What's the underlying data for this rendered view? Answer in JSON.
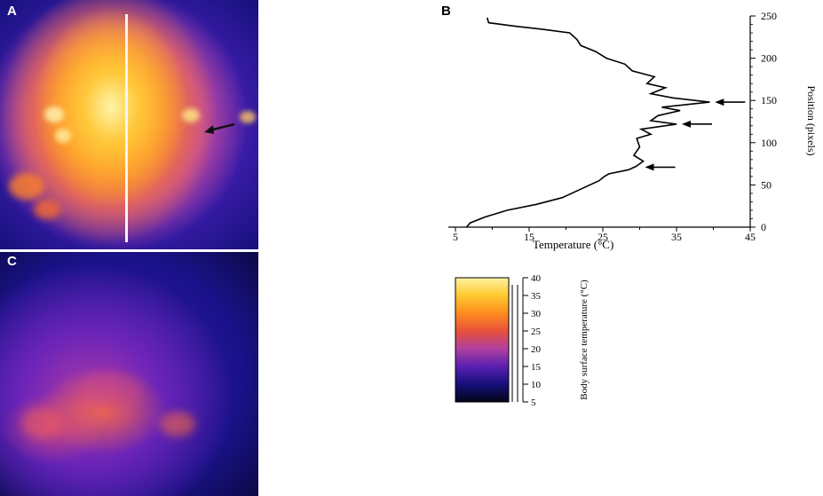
{
  "figure": {
    "panels": [
      {
        "id": "A",
        "label": "A"
      },
      {
        "id": "B",
        "label": "B"
      },
      {
        "id": "C",
        "label": "C"
      }
    ]
  },
  "chart_data": [
    {
      "type": "line",
      "panel": "B",
      "orientation": "vertical profile",
      "xlabel": "Temperature (°C)",
      "ylabel": "Position (pixels)",
      "xlim": [
        5,
        45
      ],
      "ylim": [
        0,
        250
      ],
      "xticks": [
        "5",
        "15",
        "25",
        "35",
        "45"
      ],
      "yticks": [
        "0",
        "50",
        "100",
        "150",
        "200",
        "250"
      ],
      "series": [
        {
          "points": [
            {
              "t": 6.5,
              "p": 0
            },
            {
              "t": 7,
              "p": 5
            },
            {
              "t": 9,
              "p": 12
            },
            {
              "t": 12,
              "p": 20
            },
            {
              "t": 16,
              "p": 27
            },
            {
              "t": 19.5,
              "p": 35
            },
            {
              "t": 22,
              "p": 45
            },
            {
              "t": 24.5,
              "p": 55
            },
            {
              "t": 25.2,
              "p": 60
            },
            {
              "t": 25.8,
              "p": 63
            },
            {
              "t": 28.5,
              "p": 68
            },
            {
              "t": 29.5,
              "p": 72
            },
            {
              "t": 30.5,
              "p": 78
            },
            {
              "t": 29.2,
              "p": 85
            },
            {
              "t": 30,
              "p": 95
            },
            {
              "t": 29.6,
              "p": 105
            },
            {
              "t": 31.5,
              "p": 110
            },
            {
              "t": 30.2,
              "p": 116
            },
            {
              "t": 35,
              "p": 122
            },
            {
              "t": 31.5,
              "p": 126
            },
            {
              "t": 32.5,
              "p": 132
            },
            {
              "t": 35.5,
              "p": 138
            },
            {
              "t": 33,
              "p": 142
            },
            {
              "t": 39.5,
              "p": 148
            },
            {
              "t": 34.5,
              "p": 153
            },
            {
              "t": 31.5,
              "p": 158
            },
            {
              "t": 33.5,
              "p": 165
            },
            {
              "t": 31,
              "p": 170
            },
            {
              "t": 32,
              "p": 178
            },
            {
              "t": 29,
              "p": 185
            },
            {
              "t": 28,
              "p": 193
            },
            {
              "t": 25.5,
              "p": 200
            },
            {
              "t": 24,
              "p": 208
            },
            {
              "t": 22,
              "p": 215
            },
            {
              "t": 21.5,
              "p": 222
            },
            {
              "t": 20.5,
              "p": 230
            },
            {
              "t": 17,
              "p": 234
            },
            {
              "t": 13,
              "p": 238
            },
            {
              "t": 9.5,
              "p": 242
            },
            {
              "t": 9.3,
              "p": 248
            }
          ]
        }
      ],
      "annotations": [
        {
          "kind": "arrow",
          "p": 148
        },
        {
          "kind": "arrow",
          "p": 122
        },
        {
          "kind": "arrow",
          "p": 71
        }
      ]
    },
    {
      "type": "heatmap",
      "panel": "colorbar",
      "ylabel": "Body surface temperature (°C)",
      "ylim": [
        5,
        40
      ],
      "yticks": [
        "5",
        "10",
        "15",
        "20",
        "25",
        "30",
        "35",
        "40"
      ],
      "colors": [
        "#050518",
        "#14107a",
        "#5a20b0",
        "#b040a0",
        "#e8503a",
        "#ff8c20",
        "#ffc830",
        "#fff4a0"
      ]
    }
  ]
}
